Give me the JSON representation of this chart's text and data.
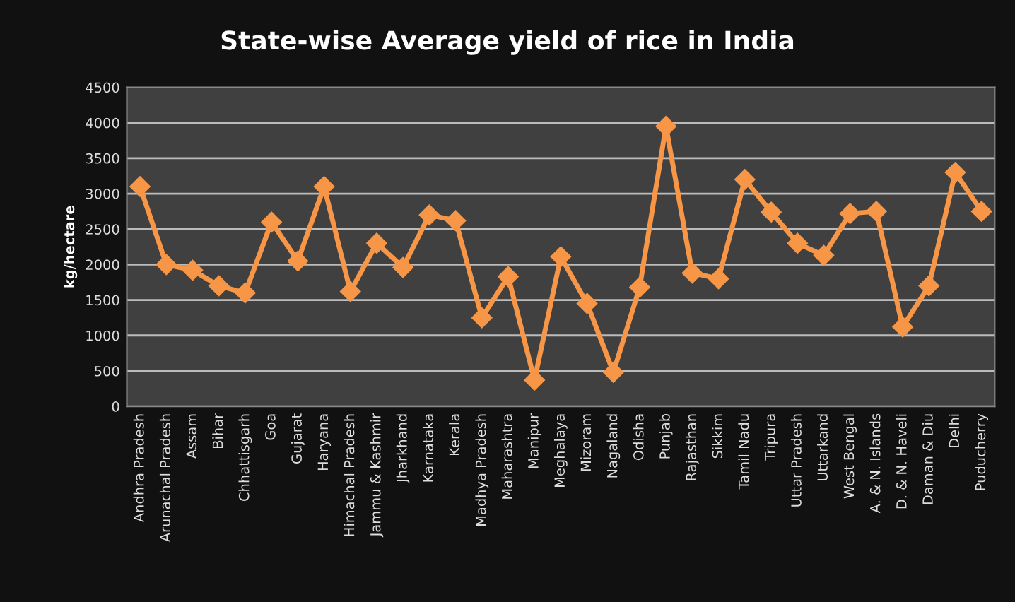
{
  "chart_data": {
    "type": "line",
    "title": "State-wise Average yield of rice in India",
    "ylabel": "kg/hectare",
    "categories": [
      "Andhra Pradesh",
      "Arunachal Pradesh",
      "Assam",
      "Bihar",
      "Chhattisgarh",
      "Goa",
      "Gujarat",
      "Haryana",
      "Himachal Pradesh",
      "Jammu & Kashmir",
      "Jharkhand",
      "Karnataka",
      "Kerala",
      "Madhya Pradesh",
      "Maharashtra",
      "Manipur",
      "Meghalaya",
      "Mizoram",
      "Nagaland",
      "Odisha",
      "Punjab",
      "Rajasthan",
      "Sikkim",
      "Tamil Nadu",
      "Tripura",
      "Uttar Pradesh",
      "Uttarkand",
      "West Bengal",
      "A. & N. Islands",
      "D. & N. Haveli",
      "Daman & Diu",
      "Delhi",
      "Puducherry"
    ],
    "series": [
      {
        "color": "#f79646",
        "values": [
          3100,
          2000,
          1920,
          1700,
          1600,
          2600,
          2050,
          3100,
          1620,
          2300,
          1960,
          2700,
          2620,
          1250,
          1830,
          370,
          2110,
          1450,
          480,
          1680,
          3950,
          1880,
          1800,
          3200,
          2740,
          2300,
          2130,
          2720,
          2750,
          1120,
          1700,
          3300,
          2750
        ]
      }
    ],
    "ylim": [
      0,
      4500
    ],
    "yticks": [
      0,
      500,
      1000,
      1500,
      2000,
      2500,
      3000,
      3500,
      4000,
      4500
    ],
    "grid": "y",
    "marker": "diamond",
    "line_style": "solid",
    "legend": false
  }
}
